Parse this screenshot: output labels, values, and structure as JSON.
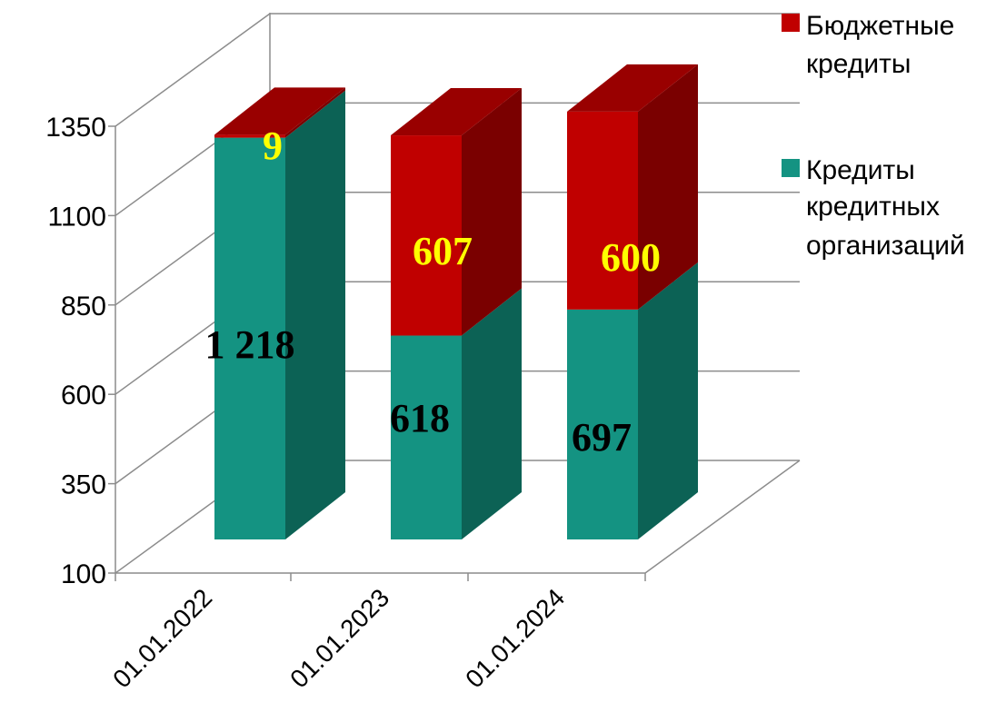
{
  "chart_data": {
    "type": "bar",
    "stacked": true,
    "three_d": true,
    "categories": [
      "01.01.2022",
      "01.01.2023",
      "01.01.2024"
    ],
    "series": [
      {
        "name": "Кредиты кредитных организаций",
        "values": [
          1218,
          618,
          697
        ],
        "labels": [
          "1 218",
          "618",
          "697"
        ]
      },
      {
        "name": "Бюджетные кредиты",
        "values": [
          9,
          607,
          600
        ],
        "labels": [
          "9",
          "607",
          "600"
        ]
      }
    ],
    "yticks": [
      "100",
      "350",
      "600",
      "850",
      "1100",
      "1350"
    ],
    "ylim": [
      100,
      1350
    ],
    "grid": true,
    "legend": "right",
    "legend_items": [
      {
        "lines": [
          "Бюджетные",
          "кредиты"
        ]
      },
      {
        "lines": [
          "Кредиты",
          "кредитных",
          "организаций"
        ]
      }
    ],
    "colors": {
      "teal_front": "#149382",
      "teal_side": "#0C6255",
      "teal_top": "#1DAF9B",
      "red_front": "#C00000",
      "red_side": "#7A0000",
      "red_top": "#990000",
      "label_dark": "#000000",
      "label_yellow": "#FFFF00"
    }
  }
}
